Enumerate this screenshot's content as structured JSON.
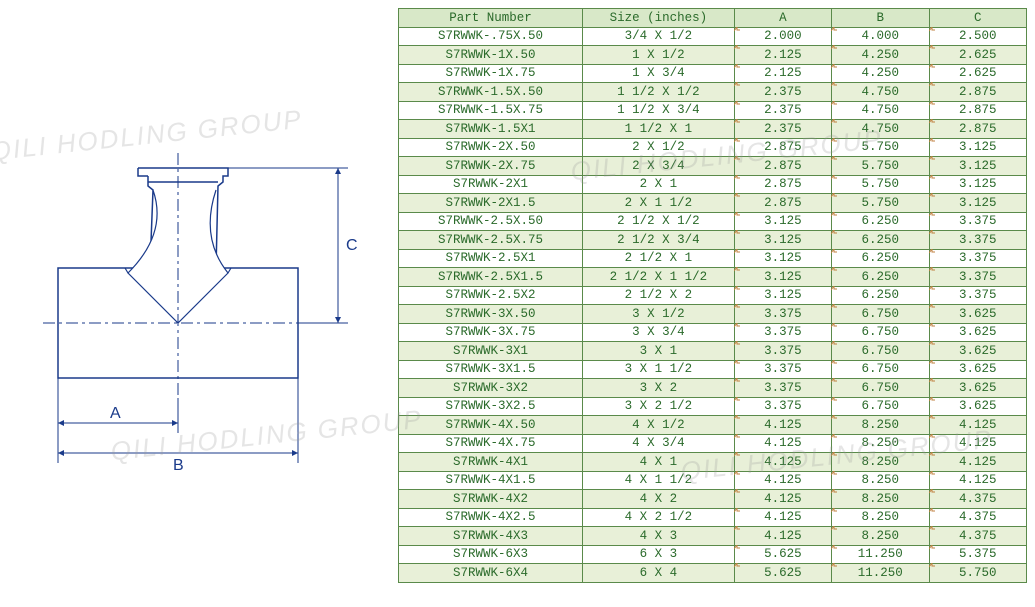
{
  "watermark_text": "QILI HODLING GROUP",
  "diagram": {
    "labels": {
      "A": "A",
      "B": "B",
      "C": "C"
    },
    "stroke_color": "#1a3a8a",
    "stroke_width": 1.5
  },
  "table": {
    "border_color": "#5a8a4a",
    "header_bg": "#d8e8c8",
    "row_alt_bg": "#e8f0d8",
    "row_bg": "#ffffff",
    "text_color": "#2a6a2a",
    "tick_color": "#c08040",
    "columns": [
      "Part Number",
      "Size (inches)",
      "A",
      "B",
      "C"
    ],
    "rows": [
      [
        "S7RWWK-.75X.50",
        "3/4 X 1/2",
        "2.000",
        "4.000",
        "2.500"
      ],
      [
        "S7RWWK-1X.50",
        "1 X 1/2",
        "2.125",
        "4.250",
        "2.625"
      ],
      [
        "S7RWWK-1X.75",
        "1 X 3/4",
        "2.125",
        "4.250",
        "2.625"
      ],
      [
        "S7RWWK-1.5X.50",
        "1 1/2 X 1/2",
        "2.375",
        "4.750",
        "2.875"
      ],
      [
        "S7RWWK-1.5X.75",
        "1 1/2 X 3/4",
        "2.375",
        "4.750",
        "2.875"
      ],
      [
        "S7RWWK-1.5X1",
        "1 1/2 X 1",
        "2.375",
        "4.750",
        "2.875"
      ],
      [
        "S7RWWK-2X.50",
        "2 X 1/2",
        "2.875",
        "5.750",
        "3.125"
      ],
      [
        "S7RWWK-2X.75",
        "2 X 3/4",
        "2.875",
        "5.750",
        "3.125"
      ],
      [
        "S7RWWK-2X1",
        "2 X 1",
        "2.875",
        "5.750",
        "3.125"
      ],
      [
        "S7RWWK-2X1.5",
        "2 X 1 1/2",
        "2.875",
        "5.750",
        "3.125"
      ],
      [
        "S7RWWK-2.5X.50",
        "2 1/2 X 1/2",
        "3.125",
        "6.250",
        "3.375"
      ],
      [
        "S7RWWK-2.5X.75",
        "2 1/2 X 3/4",
        "3.125",
        "6.250",
        "3.375"
      ],
      [
        "S7RWWK-2.5X1",
        "2 1/2 X 1",
        "3.125",
        "6.250",
        "3.375"
      ],
      [
        "S7RWWK-2.5X1.5",
        "2 1/2 X 1 1/2",
        "3.125",
        "6.250",
        "3.375"
      ],
      [
        "S7RWWK-2.5X2",
        "2 1/2 X 2",
        "3.125",
        "6.250",
        "3.375"
      ],
      [
        "S7RWWK-3X.50",
        "3 X 1/2",
        "3.375",
        "6.750",
        "3.625"
      ],
      [
        "S7RWWK-3X.75",
        "3 X 3/4",
        "3.375",
        "6.750",
        "3.625"
      ],
      [
        "S7RWWK-3X1",
        "3 X 1",
        "3.375",
        "6.750",
        "3.625"
      ],
      [
        "S7RWWK-3X1.5",
        "3 X 1 1/2",
        "3.375",
        "6.750",
        "3.625"
      ],
      [
        "S7RWWK-3X2",
        "3 X 2",
        "3.375",
        "6.750",
        "3.625"
      ],
      [
        "S7RWWK-3X2.5",
        "3 X 2 1/2",
        "3.375",
        "6.750",
        "3.625"
      ],
      [
        "S7RWWK-4X.50",
        "4 X 1/2",
        "4.125",
        "8.250",
        "4.125"
      ],
      [
        "S7RWWK-4X.75",
        "4 X 3/4",
        "4.125",
        "8.250",
        "4.125"
      ],
      [
        "S7RWWK-4X1",
        "4 X 1",
        "4.125",
        "8.250",
        "4.125"
      ],
      [
        "S7RWWK-4X1.5",
        "4 X 1 1/2",
        "4.125",
        "8.250",
        "4.125"
      ],
      [
        "S7RWWK-4X2",
        "4 X 2",
        "4.125",
        "8.250",
        "4.375"
      ],
      [
        "S7RWWK-4X2.5",
        "4 X 2 1/2",
        "4.125",
        "8.250",
        "4.375"
      ],
      [
        "S7RWWK-4X3",
        "4 X 3",
        "4.125",
        "8.250",
        "4.375"
      ],
      [
        "S7RWWK-6X3",
        "6 X 3",
        "5.625",
        "11.250",
        "5.375"
      ],
      [
        "S7RWWK-6X4",
        "6 X 4",
        "5.625",
        "11.250",
        "5.750"
      ]
    ]
  }
}
